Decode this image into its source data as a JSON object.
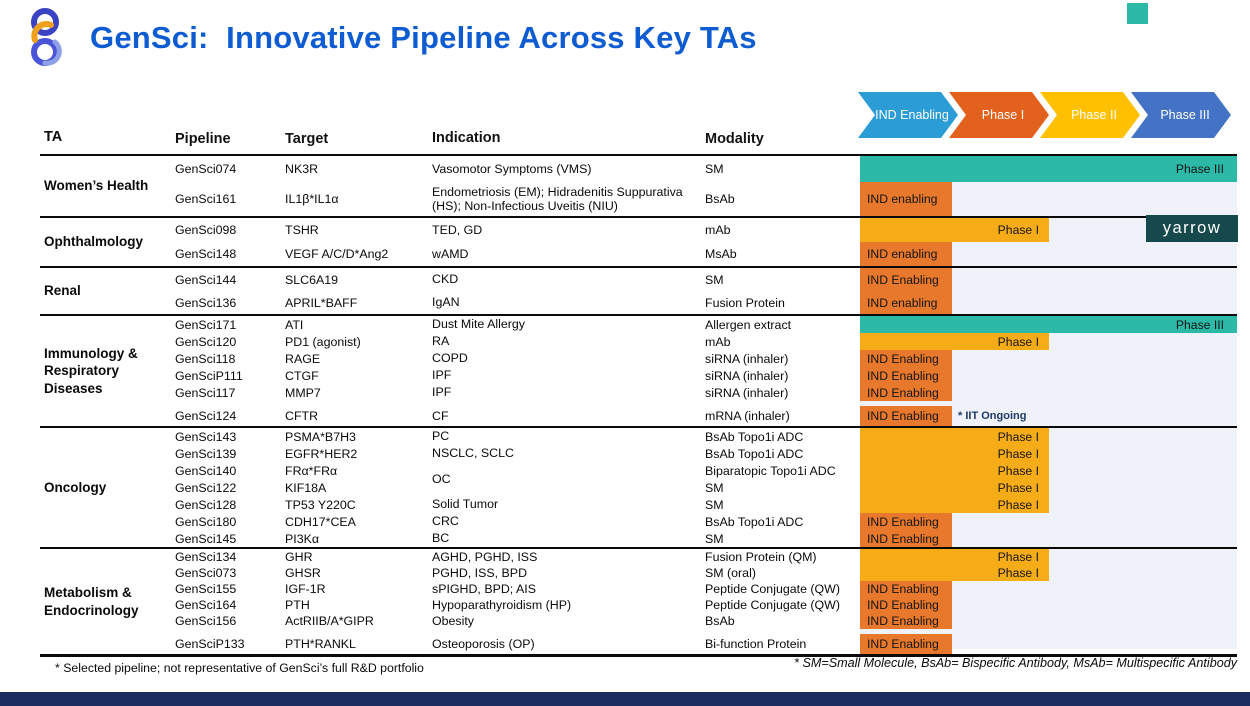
{
  "header": {
    "title": "GenSci:  Innovative Pipeline Across Key TAs",
    "logo": "dna-helix-logo",
    "corner_accent_color": "#2cb9a7"
  },
  "legend": [
    {
      "label": "IND Enabling",
      "color": "#2b9cd6"
    },
    {
      "label": "Phase I",
      "color": "#e2611c"
    },
    {
      "label": "Phase II",
      "color": "#ffc000"
    },
    {
      "label": "Phase III",
      "color": "#4472c4"
    }
  ],
  "bar_colors": {
    "ind": "#e8782b",
    "phase1": "#f6ac16",
    "phase3": "#2cb9a7"
  },
  "table": {
    "columns": [
      "TA",
      "Pipeline",
      "Target",
      "Indication",
      "Modality"
    ],
    "groups": [
      {
        "ta": "Women’s Health",
        "rows": [
          {
            "pipeline": "GenSci074",
            "target": "NK3R",
            "indication": "Vasomotor Symptoms (VMS)",
            "modality": "SM",
            "bar": {
              "type": "phase3",
              "label": "Phase III"
            }
          },
          {
            "pipeline": "GenSci161",
            "target": "IL1β*IL1α",
            "indication": "Endometriosis (EM); Hidradenitis Suppurativa (HS); Non-Infectious Uveitis (NIU)",
            "modality": "BsAb",
            "bar": {
              "type": "ind",
              "label": "IND enabling"
            }
          }
        ]
      },
      {
        "ta": "Ophthalmology",
        "rows": [
          {
            "pipeline": "GenSci098",
            "target": "TSHR",
            "indication": "TED, GD",
            "modality": "mAb",
            "bar": {
              "type": "phase1",
              "label": "Phase I"
            }
          },
          {
            "pipeline": "GenSci148",
            "target": "VEGF A/C/D*Ang2",
            "indication": "wAMD",
            "modality": "MsAb",
            "bar": {
              "type": "ind",
              "label": "IND enabling"
            }
          }
        ]
      },
      {
        "ta": "Renal",
        "rows": [
          {
            "pipeline": "GenSci144",
            "target": "SLC6A19",
            "indication": "CKD",
            "modality": "SM",
            "bar": {
              "type": "ind",
              "label": "IND Enabling"
            }
          },
          {
            "pipeline": "GenSci136",
            "target": "APRIL*BAFF",
            "indication": "IgAN",
            "modality": "Fusion Protein",
            "bar": {
              "type": "ind",
              "label": "IND enabling"
            }
          }
        ]
      },
      {
        "ta": "Immunology &\nRespiratory\nDiseases",
        "rows": [
          {
            "pipeline": "GenSci171",
            "target": "ATI",
            "indication": "Dust Mite Allergy",
            "modality": "Allergen extract",
            "bar": {
              "type": "phase3",
              "label": "Phase III"
            }
          },
          {
            "pipeline": "GenSci120",
            "target": "PD1 (agonist)",
            "indication": "RA",
            "modality": "mAb",
            "bar": {
              "type": "phase1",
              "label": "Phase I"
            }
          },
          {
            "pipeline": "GenSci118",
            "target": "RAGE",
            "indication": "COPD",
            "modality": "siRNA (inhaler)",
            "bar": {
              "type": "ind",
              "label": "IND Enabling"
            }
          },
          {
            "pipeline": "GenSciP111",
            "target": "CTGF",
            "indication": "IPF",
            "modality": "siRNA (inhaler)",
            "bar": {
              "type": "ind",
              "label": "IND Enabling"
            }
          },
          {
            "pipeline": "GenSci117",
            "target": "MMP7",
            "indication": "IPF",
            "modality": "siRNA (inhaler)",
            "bar": {
              "type": "ind",
              "label": "IND Enabling"
            }
          },
          {
            "pipeline": "GenSci124",
            "target": "CFTR",
            "indication": "CF",
            "modality": "mRNA (inhaler)",
            "gap": true,
            "bar": {
              "type": "ind",
              "label": "IND Enabling"
            },
            "note": "* IIT Ongoing"
          }
        ]
      },
      {
        "ta": "Oncology",
        "rows": [
          {
            "pipeline": "GenSci143",
            "target": "PSMA*B7H3",
            "indication": "PC",
            "modality": "BsAb Topo1i ADC",
            "bar": {
              "type": "phase1",
              "label": "Phase I"
            }
          },
          {
            "pipeline": "GenSci139",
            "target": "EGFR*HER2",
            "indication": "NSCLC, SCLC",
            "modality": "BsAb Topo1i ADC",
            "bar": {
              "type": "phase1",
              "label": "Phase I"
            }
          },
          {
            "pipeline": "GenSci140",
            "target": "FRα*FRα",
            "indication": "OC",
            "span_next": true,
            "modality": "Biparatopic Topo1i ADC",
            "bar": {
              "type": "phase1",
              "label": "Phase I"
            }
          },
          {
            "pipeline": "GenSci122",
            "target": "KIF18A",
            "indication": "",
            "modality": "SM",
            "bar": {
              "type": "phase1",
              "label": "Phase I"
            }
          },
          {
            "pipeline": "GenSci128",
            "target": "TP53 Y220C",
            "indication": "Solid Tumor",
            "modality": "SM",
            "bar": {
              "type": "phase1",
              "label": "Phase I"
            }
          },
          {
            "pipeline": "GenSci180",
            "target": "CDH17*CEA",
            "indication": "CRC",
            "modality": "BsAb Topo1i ADC",
            "bar": {
              "type": "ind",
              "label": "IND Enabling"
            }
          },
          {
            "pipeline": "GenSci145",
            "target": "PI3Kα",
            "indication": "BC",
            "modality": "SM",
            "bar": {
              "type": "ind",
              "label": "IND Enabling"
            }
          }
        ]
      },
      {
        "ta": "Metabolism &\nEndocrinology",
        "rows": [
          {
            "pipeline": "GenSci134",
            "target": "GHR",
            "indication": "AGHD, PGHD, ISS",
            "modality": "Fusion Protein (QM)",
            "bar": {
              "type": "phase1",
              "label": "Phase I"
            }
          },
          {
            "pipeline": "GenSci073",
            "target": "GHSR",
            "indication": "PGHD, ISS, BPD",
            "modality": "SM (oral)",
            "bar": {
              "type": "phase1",
              "label": "Phase I"
            }
          },
          {
            "pipeline": "GenSci155",
            "target": "IGF-1R",
            "indication": "sPIGHD, BPD; AIS",
            "modality": "Peptide Conjugate (QW)",
            "bar": {
              "type": "ind",
              "label": "IND Enabling"
            }
          },
          {
            "pipeline": "GenSci164",
            "target": "PTH",
            "indication": "Hypoparathyroidism (HP)",
            "modality": "Peptide Conjugate (QW)",
            "bar": {
              "type": "ind",
              "label": "IND Enabling"
            }
          },
          {
            "pipeline": "GenSci156",
            "target": "ActRIIB/A*GIPR",
            "indication": "Obesity",
            "modality": "BsAb",
            "bar": {
              "type": "ind",
              "label": "IND Enabling"
            }
          },
          {
            "pipeline": "GenSciP133",
            "target": "PTH*RANKL",
            "indication": "Osteoporosis (OP)",
            "modality": "Bi-function Protein",
            "gap": true,
            "bar": {
              "type": "ind",
              "label": "IND Enabling"
            }
          }
        ]
      }
    ]
  },
  "watermark": {
    "label": "Yarrow",
    "bg": "#15494b"
  },
  "footnotes": {
    "left": "* Selected pipeline; not representative of GenSci’s full R&D portfolio",
    "right": "* SM=Small Molecule, BsAb= Bispecific Antibody,  MsAb= Multispecific Antibody"
  }
}
